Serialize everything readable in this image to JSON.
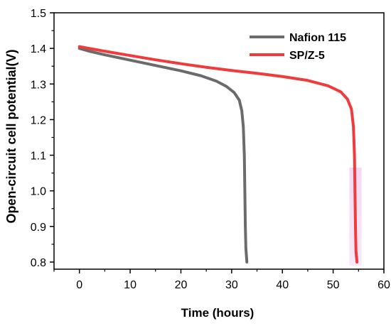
{
  "chart_data": {
    "type": "line",
    "title": "",
    "xlabel": "Time (hours)",
    "ylabel": "Open-circuit cell potential(V)",
    "xlim": [
      -5,
      60
    ],
    "ylim": [
      0.78,
      1.5
    ],
    "x_ticks": [
      0,
      10,
      20,
      30,
      40,
      50,
      60
    ],
    "y_ticks": [
      0.8,
      0.9,
      1.0,
      1.1,
      1.2,
      1.3,
      1.4,
      1.5
    ],
    "x_tick_labels": [
      "0",
      "10",
      "20",
      "30",
      "40",
      "50",
      "60"
    ],
    "y_tick_labels": [
      "0.8",
      "0.9",
      "1.0",
      "1.1",
      "1.2",
      "1.3",
      "1.4",
      "1.5"
    ],
    "grid": false,
    "legend_position": "top-right",
    "series": [
      {
        "name": "Nafion 115",
        "color": "#6b6b6b",
        "points": [
          [
            0,
            1.4
          ],
          [
            2,
            1.392
          ],
          [
            5,
            1.382
          ],
          [
            10,
            1.367
          ],
          [
            15,
            1.352
          ],
          [
            20,
            1.337
          ],
          [
            24,
            1.323
          ],
          [
            27,
            1.308
          ],
          [
            29,
            1.293
          ],
          [
            30.5,
            1.276
          ],
          [
            31.5,
            1.255
          ],
          [
            32.0,
            1.225
          ],
          [
            32.3,
            1.18
          ],
          [
            32.5,
            1.1
          ],
          [
            32.6,
            1.0
          ],
          [
            32.7,
            0.9
          ],
          [
            32.8,
            0.84
          ],
          [
            33.0,
            0.8
          ]
        ]
      },
      {
        "name": "SP/Z-5",
        "color": "#ef3b3b",
        "points": [
          [
            0,
            1.405
          ],
          [
            5,
            1.392
          ],
          [
            10,
            1.38
          ],
          [
            15,
            1.368
          ],
          [
            20,
            1.357
          ],
          [
            25,
            1.347
          ],
          [
            30,
            1.338
          ],
          [
            35,
            1.33
          ],
          [
            40,
            1.321
          ],
          [
            45,
            1.31
          ],
          [
            49,
            1.295
          ],
          [
            51.5,
            1.278
          ],
          [
            52.8,
            1.258
          ],
          [
            53.6,
            1.23
          ],
          [
            54.0,
            1.18
          ],
          [
            54.2,
            1.1
          ],
          [
            54.3,
            1.0
          ],
          [
            54.4,
            0.9
          ],
          [
            54.5,
            0.83
          ],
          [
            54.7,
            0.8
          ]
        ]
      }
    ]
  }
}
